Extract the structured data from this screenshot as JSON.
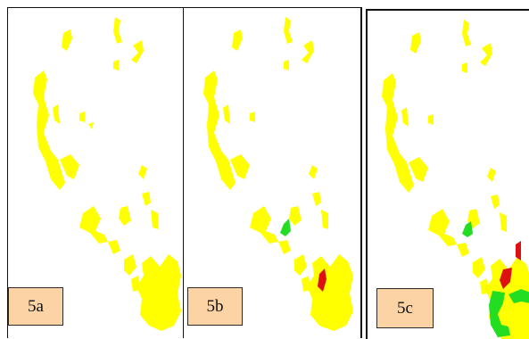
{
  "figure": {
    "panels": [
      {
        "label": "5a",
        "regions": [
          "yellow"
        ]
      },
      {
        "label": "5b",
        "regions": [
          "yellow",
          "green",
          "red"
        ]
      },
      {
        "label": "5c",
        "regions": [
          "yellow",
          "green",
          "red"
        ]
      }
    ]
  },
  "colors": {
    "yellow": "#ffff00",
    "green": "#22dd22",
    "red": "#dd1111",
    "label_fill": "#fbd3a4",
    "border": "#111111"
  }
}
